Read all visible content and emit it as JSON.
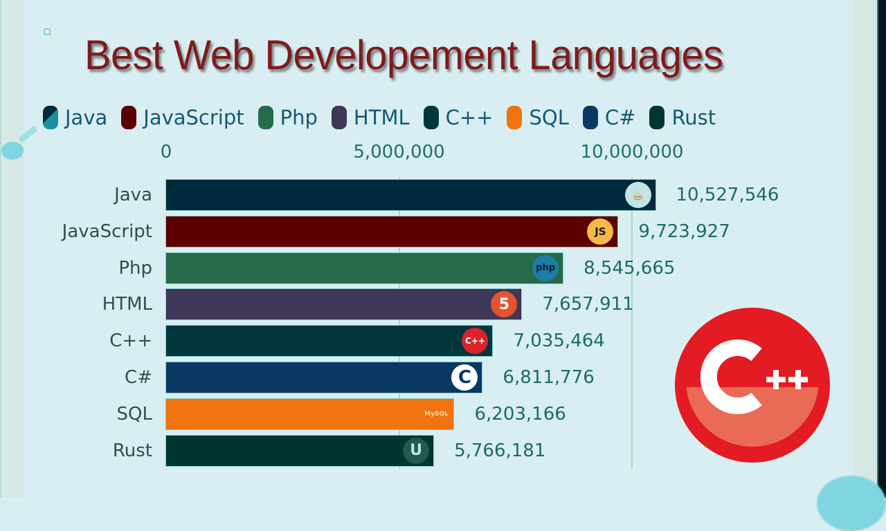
{
  "title": "Best Web Developement Languages",
  "legend": [
    {
      "label": "Java",
      "color": "#00293c"
    },
    {
      "label": "JavaScript",
      "color": "#5c0000"
    },
    {
      "label": "Php",
      "color": "#276a4a"
    },
    {
      "label": "HTML",
      "color": "#3e3757"
    },
    {
      "label": "C++",
      "color": "#00373f"
    },
    {
      "label": "SQL",
      "color": "#ef7410"
    },
    {
      "label": "C#",
      "color": "#0a3863"
    },
    {
      "label": "Rust",
      "color": "#003530"
    }
  ],
  "axis": {
    "ticks": [
      "0",
      "5,000,000",
      "10,000,000"
    ]
  },
  "bars": [
    {
      "label": "Java",
      "value": 10527546,
      "value_text": "10,527,546",
      "color": "#00293c",
      "icon": "java-logo-icon"
    },
    {
      "label": "JavaScript",
      "value": 9723927,
      "value_text": "9,723,927",
      "color": "#5c0000",
      "icon": "javascript-logo-icon",
      "icon_text": "JS"
    },
    {
      "label": "Php",
      "value": 8545665,
      "value_text": "8,545,665",
      "color": "#276a4a",
      "icon": "php-logo-icon",
      "icon_text": "php"
    },
    {
      "label": "HTML",
      "value": 7657911,
      "value_text": "7,657,911",
      "color": "#3e3757",
      "icon": "html5-logo-icon",
      "icon_text": "5"
    },
    {
      "label": "C++",
      "value": 7035464,
      "value_text": "7,035,464",
      "color": "#00373f",
      "icon": "cpp-logo-icon",
      "icon_text": "C++"
    },
    {
      "label": "C#",
      "value": 6811776,
      "value_text": "6,811,776",
      "color": "#0a3863",
      "icon": "csharp-logo-icon",
      "icon_text": "C"
    },
    {
      "label": "SQL",
      "value": 6203166,
      "value_text": "6,203,166",
      "color": "#ef7410",
      "icon": "mysql-logo-icon",
      "icon_text": "MySQL"
    },
    {
      "label": "Rust",
      "value": 5766181,
      "value_text": "5,766,181",
      "color": "#003530",
      "icon": "rust-logo-icon",
      "icon_text": "U"
    }
  ],
  "featured_logo": {
    "text": "C++",
    "name": "cpp-logo"
  },
  "chart_data": {
    "type": "bar",
    "orientation": "horizontal",
    "title": "Best Web Developement Languages",
    "categories": [
      "Java",
      "JavaScript",
      "Php",
      "HTML",
      "C++",
      "C#",
      "SQL",
      "Rust"
    ],
    "values": [
      10527546,
      9723927,
      8545665,
      7657911,
      7035464,
      6811776,
      6203166,
      5766181
    ],
    "xlabel": "",
    "ylabel": "",
    "x_ticks": [
      0,
      5000000,
      10000000
    ],
    "xlim": [
      0,
      11000000
    ],
    "grid": true,
    "legend_position": "top",
    "legend": [
      "Java",
      "JavaScript",
      "Php",
      "HTML",
      "C++",
      "SQL",
      "C#",
      "Rust"
    ]
  }
}
